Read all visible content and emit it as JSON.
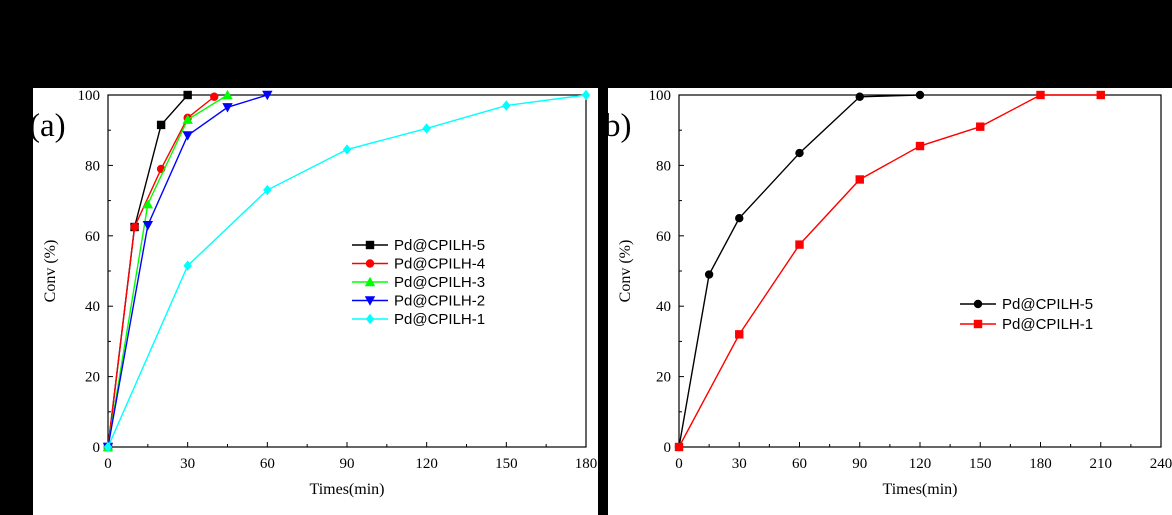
{
  "chart_data": [
    {
      "panel_label": "(a)",
      "type": "line",
      "xlabel": "Times(min)",
      "ylabel": "Conv (%)",
      "xlim": [
        0,
        180
      ],
      "ylim": [
        0,
        100
      ],
      "xticks": [
        0,
        30,
        60,
        90,
        120,
        150,
        180
      ],
      "yticks": [
        0,
        20,
        40,
        60,
        80,
        100
      ],
      "grid": false,
      "legend": "center-right",
      "series": [
        {
          "name": "Pd@CPILH-5",
          "color": "#000000",
          "marker": "square",
          "x": [
            0,
            10,
            20,
            30
          ],
          "y": [
            0,
            62.5,
            91.5,
            100
          ]
        },
        {
          "name": "Pd@CPILH-4",
          "color": "#ff0000",
          "marker": "circle",
          "x": [
            0,
            10,
            20,
            30,
            40
          ],
          "y": [
            0,
            62.5,
            79,
            93.5,
            99.5
          ]
        },
        {
          "name": "Pd@CPILH-3",
          "color": "#00ff00",
          "marker": "triangle-up",
          "x": [
            0,
            15,
            30,
            45
          ],
          "y": [
            0,
            69,
            93,
            100
          ]
        },
        {
          "name": "Pd@CPILH-2",
          "color": "#0000ff",
          "marker": "triangle-down",
          "x": [
            0,
            15,
            30,
            45,
            60
          ],
          "y": [
            0,
            63,
            88.5,
            96.5,
            100
          ]
        },
        {
          "name": "Pd@CPILH-1",
          "color": "#00ffff",
          "marker": "diamond",
          "x": [
            0,
            30,
            60,
            90,
            120,
            150,
            180
          ],
          "y": [
            0,
            51.5,
            73,
            84.5,
            90.5,
            97,
            100
          ]
        }
      ]
    },
    {
      "panel_label": "(b)",
      "type": "line",
      "xlabel": "Times(min)",
      "ylabel": "Conv (%)",
      "xlim": [
        0,
        240
      ],
      "ylim": [
        0,
        100
      ],
      "xticks": [
        0,
        30,
        60,
        90,
        120,
        150,
        180,
        210,
        240
      ],
      "yticks": [
        0,
        20,
        40,
        60,
        80,
        100
      ],
      "grid": false,
      "legend": "center-right",
      "series": [
        {
          "name": "Pd@CPILH-5",
          "color": "#000000",
          "marker": "circle",
          "x": [
            0,
            15,
            30,
            60,
            90,
            120
          ],
          "y": [
            0,
            49,
            65,
            83.5,
            99.5,
            100
          ]
        },
        {
          "name": "Pd@CPILH-1",
          "color": "#ff0000",
          "marker": "square",
          "x": [
            0,
            30,
            60,
            90,
            120,
            150,
            180,
            210
          ],
          "y": [
            0,
            32,
            57.5,
            76,
            85.5,
            91,
            100,
            100
          ]
        }
      ]
    }
  ]
}
